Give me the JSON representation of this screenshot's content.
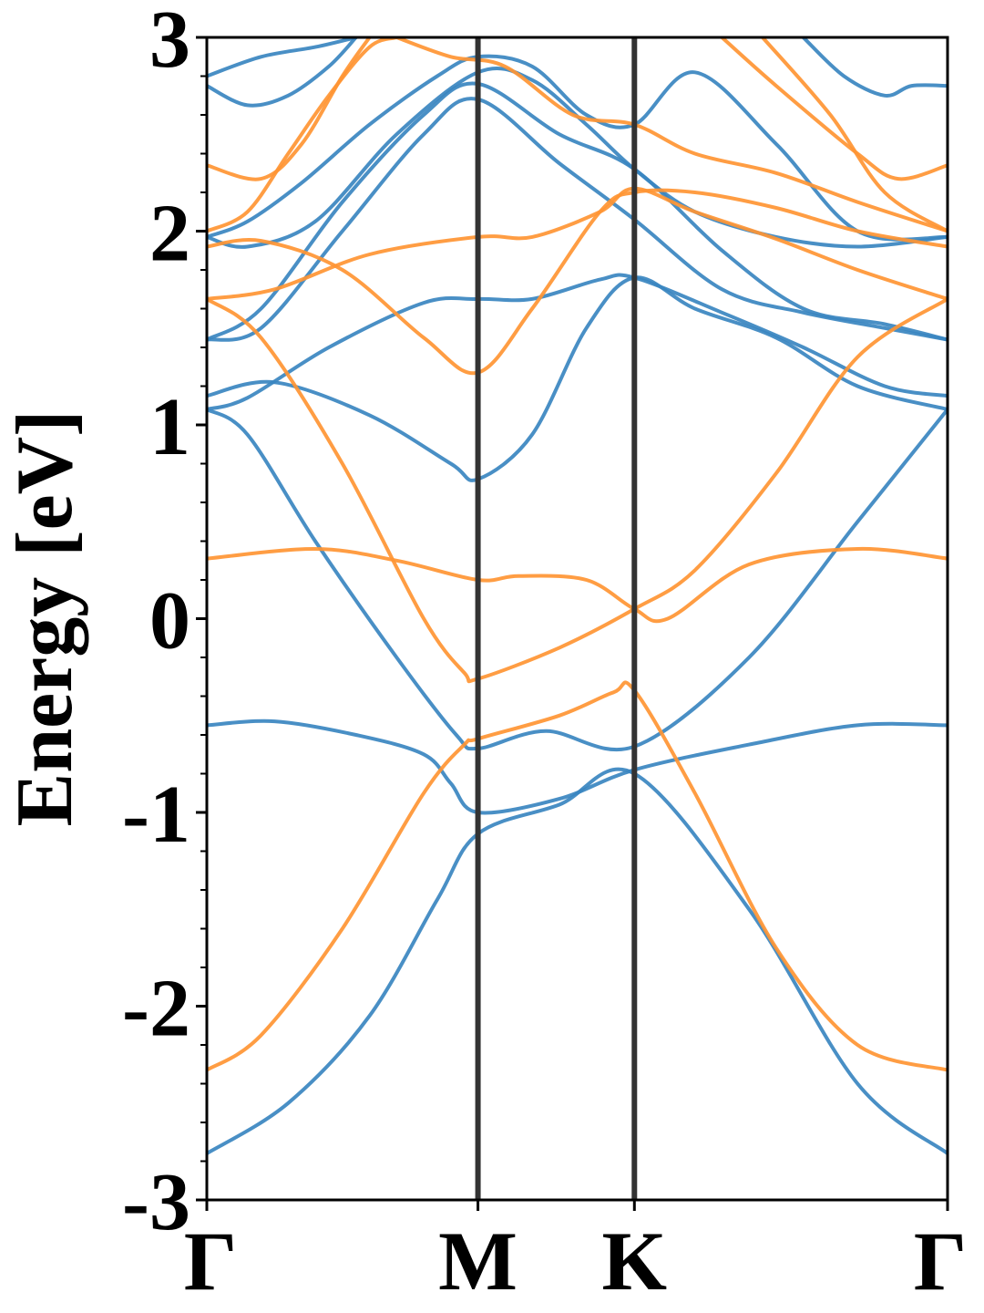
{
  "chart_data": {
    "type": "line",
    "title": "",
    "xlabel": "",
    "ylabel": "Energy [eV]",
    "ylim": [
      -3,
      3
    ],
    "yticks": [
      "-3",
      "-2",
      "-1",
      "0",
      "1",
      "2",
      "3"
    ],
    "kpath": [
      {
        "label": "Γ",
        "pos": 0.0
      },
      {
        "label": "M",
        "pos": 1.0
      },
      {
        "label": "K",
        "pos": 1.577
      },
      {
        "label": "Γ",
        "pos": 2.732
      }
    ],
    "grid": false,
    "legend": "none",
    "colors": {
      "blue": "#3a86c0",
      "orange": "#ff9533",
      "divider": "#333333"
    },
    "series": [
      {
        "color": "blue",
        "x": [
          0,
          0.3,
          0.6,
          0.85,
          1.0,
          1.3,
          1.577,
          2.0,
          2.4,
          2.732
        ],
        "y": [
          -2.76,
          -2.5,
          -2.05,
          -1.45,
          -1.11,
          -0.96,
          -0.8,
          -1.5,
          -2.4,
          -2.76
        ]
      },
      {
        "color": "blue",
        "x": [
          0,
          0.25,
          0.55,
          0.8,
          0.9,
          1.0,
          1.3,
          1.577,
          2.0,
          2.4,
          2.732
        ],
        "y": [
          -0.55,
          -0.53,
          -0.6,
          -0.7,
          -0.85,
          -1.0,
          -0.93,
          -0.78,
          -0.65,
          -0.55,
          -0.55
        ]
      },
      {
        "color": "blue",
        "x": [
          0,
          0.15,
          0.4,
          0.7,
          0.92,
          1.0,
          1.25,
          1.577,
          2.0,
          2.4,
          2.732
        ],
        "y": [
          1.08,
          0.95,
          0.4,
          -0.2,
          -0.6,
          -0.67,
          -0.58,
          -0.66,
          -0.2,
          0.5,
          1.08
        ]
      },
      {
        "color": "blue",
        "x": [
          0,
          0.25,
          0.6,
          0.9,
          1.0,
          1.2,
          1.4,
          1.577,
          1.8,
          2.1,
          2.4,
          2.732
        ],
        "y": [
          1.15,
          1.22,
          1.05,
          0.8,
          0.72,
          0.95,
          1.5,
          1.76,
          1.6,
          1.45,
          1.2,
          1.08
        ]
      },
      {
        "color": "blue",
        "x": [
          0,
          0.15,
          0.45,
          0.8,
          1.0,
          1.2,
          1.45,
          1.577,
          1.9,
          2.2,
          2.5,
          2.732
        ],
        "y": [
          1.08,
          1.14,
          1.4,
          1.63,
          1.65,
          1.65,
          1.75,
          1.76,
          1.58,
          1.4,
          1.2,
          1.15
        ]
      },
      {
        "color": "blue",
        "x": [
          0,
          0.2,
          0.5,
          0.8,
          1.0,
          1.3,
          1.577,
          1.9,
          2.2,
          2.5,
          2.732
        ],
        "y": [
          1.44,
          1.5,
          2.0,
          2.5,
          2.68,
          2.35,
          2.06,
          1.7,
          1.58,
          1.5,
          1.44
        ]
      },
      {
        "color": "blue",
        "x": [
          0,
          0.2,
          0.5,
          0.8,
          1.0,
          1.3,
          1.577,
          1.9,
          2.2,
          2.5,
          2.732
        ],
        "y": [
          1.44,
          1.6,
          2.15,
          2.6,
          2.76,
          2.5,
          2.32,
          1.9,
          1.6,
          1.52,
          1.44
        ]
      },
      {
        "color": "blue",
        "x": [
          0,
          0.15,
          0.4,
          0.7,
          1.0,
          1.2,
          1.4,
          1.577,
          1.8,
          2.1,
          2.4,
          2.732
        ],
        "y": [
          1.97,
          1.92,
          2.05,
          2.5,
          2.82,
          2.78,
          2.55,
          2.32,
          2.1,
          1.97,
          1.92,
          1.97
        ]
      },
      {
        "color": "blue",
        "x": [
          0,
          0.15,
          0.35,
          0.6,
          0.85,
          1.0,
          1.2,
          1.4,
          1.577,
          1.8,
          2.1,
          2.4,
          2.732
        ],
        "y": [
          1.97,
          2.05,
          2.25,
          2.55,
          2.8,
          2.9,
          2.85,
          2.6,
          2.55,
          2.82,
          2.45,
          2.0,
          1.97
        ]
      },
      {
        "color": "blue",
        "x": [
          0,
          0.15,
          0.3,
          0.45,
          0.55
        ],
        "y": [
          2.75,
          2.65,
          2.7,
          2.85,
          3.0
        ]
      },
      {
        "color": "blue",
        "x": [
          2.2,
          2.35,
          2.5,
          2.6,
          2.732
        ],
        "y": [
          3.0,
          2.8,
          2.7,
          2.75,
          2.75
        ]
      },
      {
        "color": "blue",
        "x": [
          0,
          0.2,
          0.4,
          0.55
        ],
        "y": [
          2.8,
          2.9,
          2.95,
          3.0
        ]
      },
      {
        "color": "orange",
        "x": [
          0,
          0.2,
          0.5,
          0.8,
          0.95,
          1.0,
          1.3,
          1.5,
          1.577,
          1.8,
          2.1,
          2.4,
          2.732
        ],
        "y": [
          -2.33,
          -2.15,
          -1.6,
          -0.9,
          -0.65,
          -0.62,
          -0.5,
          -0.38,
          -0.37,
          -0.9,
          -1.7,
          -2.2,
          -2.33
        ]
      },
      {
        "color": "orange",
        "x": [
          0,
          0.2,
          0.5,
          0.8,
          0.95,
          1.0,
          1.3,
          1.577,
          1.8,
          2.1,
          2.4,
          2.732
        ],
        "y": [
          1.65,
          1.45,
          0.8,
          0.0,
          -0.28,
          -0.31,
          -0.15,
          0.05,
          0.25,
          0.75,
          1.35,
          1.65
        ]
      },
      {
        "color": "orange",
        "x": [
          0,
          0.4,
          0.7,
          1.0,
          1.15,
          1.4,
          1.577,
          1.7,
          2.0,
          2.4,
          2.732
        ],
        "y": [
          0.31,
          0.36,
          0.3,
          0.2,
          0.22,
          0.2,
          0.05,
          0.0,
          0.28,
          0.36,
          0.31
        ]
      },
      {
        "color": "orange",
        "x": [
          0,
          0.25,
          0.6,
          1.0,
          1.2,
          1.45,
          1.577,
          1.8,
          2.1,
          2.4,
          2.732
        ],
        "y": [
          1.65,
          1.7,
          1.88,
          1.97,
          1.97,
          2.1,
          2.22,
          2.1,
          1.96,
          1.8,
          1.65
        ]
      },
      {
        "color": "orange",
        "x": [
          0,
          0.2,
          0.5,
          0.8,
          1.0,
          1.2,
          1.45,
          1.577,
          1.8,
          2.1,
          2.4,
          2.732
        ],
        "y": [
          1.92,
          1.95,
          1.8,
          1.45,
          1.27,
          1.6,
          2.1,
          2.2,
          2.2,
          2.12,
          2.0,
          1.92
        ]
      },
      {
        "color": "orange",
        "x": [
          0,
          0.15,
          0.3,
          0.45,
          0.6,
          0.7
        ],
        "y": [
          2.0,
          2.1,
          2.4,
          2.7,
          2.95,
          3.0
        ]
      },
      {
        "color": "orange",
        "x": [
          0,
          0.2,
          0.35,
          0.5,
          0.6
        ],
        "y": [
          2.34,
          2.27,
          2.45,
          2.8,
          3.0
        ]
      },
      {
        "color": "orange",
        "x": [
          0.7,
          0.9,
          1.1,
          1.35,
          1.577,
          1.8,
          2.1,
          2.4,
          2.732
        ],
        "y": [
          3.0,
          2.9,
          2.85,
          2.6,
          2.55,
          2.4,
          2.3,
          2.15,
          2.0
        ]
      },
      {
        "color": "orange",
        "x": [
          1.9,
          2.1,
          2.4,
          2.55,
          2.732
        ],
        "y": [
          3.0,
          2.75,
          2.4,
          2.27,
          2.34
        ]
      },
      {
        "color": "orange",
        "x": [
          2.05,
          2.3,
          2.5,
          2.732
        ],
        "y": [
          3.0,
          2.6,
          2.2,
          2.0
        ]
      }
    ]
  }
}
